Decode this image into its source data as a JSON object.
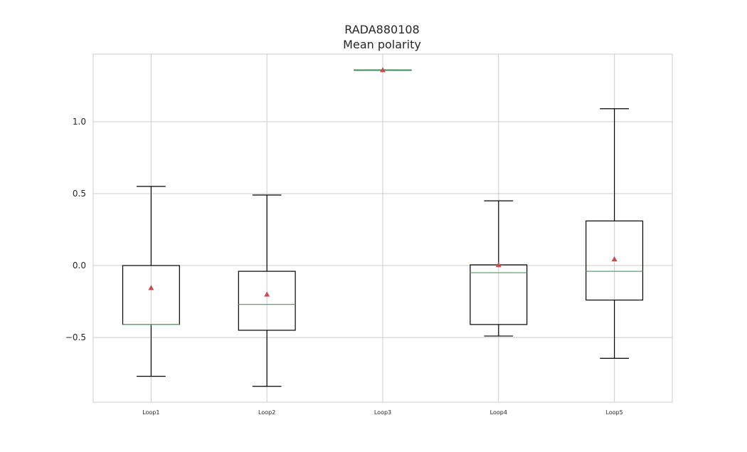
{
  "chart_data": {
    "type": "box",
    "title": "RADA880108",
    "subtitle": "Mean polarity",
    "xlabel": "",
    "ylabel": "",
    "ylim": [
      -0.95,
      1.47
    ],
    "yticks": [
      -0.5,
      0.0,
      0.5,
      1.0
    ],
    "ytick_labels": [
      "−0.5",
      "0.0",
      "0.5",
      "1.0"
    ],
    "grid": true,
    "categories": [
      "Loop1",
      "Loop2",
      "Loop3",
      "Loop4",
      "Loop5"
    ],
    "boxes": [
      {
        "name": "Loop1",
        "whisker_low": -0.77,
        "q1": -0.41,
        "median": -0.41,
        "q3": 0.0,
        "whisker_high": 0.55,
        "mean": -0.155
      },
      {
        "name": "Loop2",
        "whisker_low": -0.84,
        "q1": -0.45,
        "median": -0.27,
        "q3": -0.04,
        "whisker_high": 0.49,
        "mean": -0.2
      },
      {
        "name": "Loop3",
        "whisker_low": 1.36,
        "q1": 1.36,
        "median": 1.36,
        "q3": 1.36,
        "whisker_high": 1.36,
        "mean": 1.36
      },
      {
        "name": "Loop4",
        "whisker_low": -0.49,
        "q1": -0.41,
        "median": -0.05,
        "q3": 0.005,
        "whisker_high": 0.45,
        "mean": 0.005
      },
      {
        "name": "Loop5",
        "whisker_low": -0.645,
        "q1": -0.24,
        "median": -0.04,
        "q3": 0.31,
        "whisker_high": 1.09,
        "mean": 0.045
      }
    ],
    "colors": {
      "box": "#000000",
      "median": "#55a868",
      "mean": "#c44e52",
      "grid": "#cccccc",
      "frame": "#cccccc"
    }
  }
}
